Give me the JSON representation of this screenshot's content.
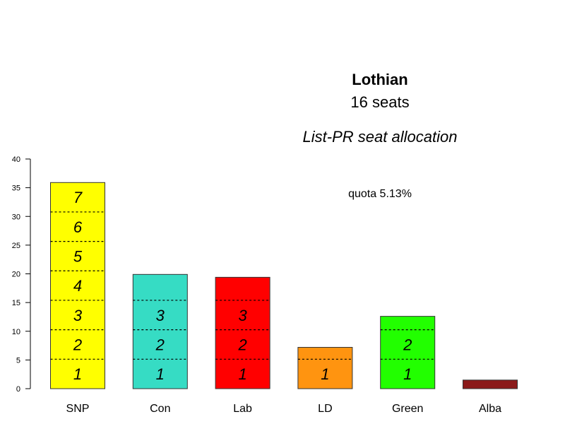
{
  "chart_data": {
    "type": "bar",
    "title": "Lothian",
    "subtitle": "16 seats",
    "method_label": "List-PR seat allocation",
    "quota_text": "quota 5.13%",
    "quota": 5.13,
    "ylim": [
      0,
      40
    ],
    "yticks": [
      0,
      5,
      10,
      15,
      20,
      25,
      30,
      35,
      40
    ],
    "categories": [
      "SNP",
      "Con",
      "Lab",
      "LD",
      "Green",
      "Alba"
    ],
    "values": [
      35.9,
      19.9,
      19.4,
      7.2,
      12.6,
      1.5
    ],
    "seats": [
      7,
      3,
      3,
      1,
      2,
      0
    ],
    "colors": [
      "#ffff00",
      "#36dcc4",
      "#ff0000",
      "#ff9410",
      "#22ff00",
      "#8b1a1a"
    ],
    "grid": false,
    "legend": "none"
  }
}
